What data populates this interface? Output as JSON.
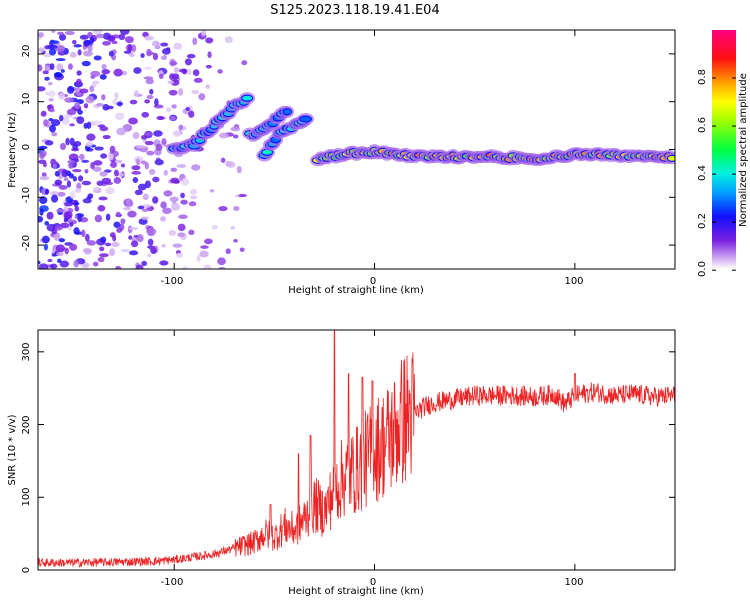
{
  "title": "S125.2023.118.19.41.E04",
  "chart_data": [
    {
      "type": "heatmap",
      "xlabel": "Height of straight line (km)",
      "ylabel": "Frequency (Hz)",
      "xlim": [
        -168,
        150
      ],
      "ylim": [
        -25,
        25
      ],
      "x_ticks": [
        "-100",
        "0",
        "100"
      ],
      "y_ticks": [
        "-20",
        "-10",
        "0",
        "10",
        "20"
      ],
      "x_tick_values": [
        -100,
        0,
        100
      ],
      "y_tick_values": [
        -20,
        -10,
        0,
        10,
        20
      ],
      "colorbar": {
        "label": "Normalized spectral amplitude",
        "range": [
          0,
          1
        ],
        "tick_labels": [
          "0.0",
          "0.2",
          "0.4",
          "0.6",
          "0.8"
        ],
        "tick_values": [
          0.0,
          0.2,
          0.4,
          0.6,
          0.8
        ],
        "colormap": "rainbow (white-violet-blue-cyan-green-yellow-red-magenta)"
      },
      "features": [
        {
          "description": "scattered low-amplitude noise",
          "x_range": [
            -168,
            -65
          ],
          "freq_range": [
            -25,
            25
          ],
          "amplitude": 0.15
        },
        {
          "description": "rising tone",
          "points": [
            [
              -100,
              0
            ],
            [
              -90,
              1
            ],
            [
              -80,
              5
            ],
            [
              -70,
              9
            ],
            [
              -62,
              11
            ]
          ]
        },
        {
          "description": "tone segment",
          "points": [
            [
              -62,
              3
            ],
            [
              -55,
              4
            ],
            [
              -48,
              7
            ],
            [
              -42,
              8
            ]
          ]
        },
        {
          "description": "tone segment",
          "points": [
            [
              -55,
              -1
            ],
            [
              -48,
              3
            ],
            [
              -40,
              5
            ],
            [
              -33,
              7
            ]
          ]
        },
        {
          "description": "steady tone",
          "points": [
            [
              -28,
              -2
            ],
            [
              -15,
              -1
            ],
            [
              0,
              -0.5
            ],
            [
              20,
              -1.5
            ],
            [
              60,
              -1.5
            ],
            [
              80,
              -2
            ],
            [
              100,
              -1
            ],
            [
              150,
              -1.5
            ]
          ],
          "peak_amplitude": 0.85
        }
      ]
    },
    {
      "type": "line",
      "xlabel": "Height of straight line (km)",
      "ylabel": "SNR (10 * v/v)",
      "xlim": [
        -168,
        150
      ],
      "ylim": [
        0,
        330
      ],
      "x_ticks": [
        "-100",
        "0",
        "100"
      ],
      "y_ticks": [
        "0",
        "100",
        "200",
        "300"
      ],
      "x_tick_values": [
        -100,
        0,
        100
      ],
      "y_tick_values": [
        0,
        100,
        200,
        300
      ],
      "color": "#ee2222",
      "x": [
        -168,
        -150,
        -130,
        -110,
        -100,
        -90,
        -80,
        -70,
        -60,
        -55,
        -50,
        -45,
        -40,
        -35,
        -30,
        -25,
        -20,
        -15,
        -10,
        -5,
        0,
        5,
        10,
        15,
        20,
        25,
        30,
        40,
        50,
        60,
        70,
        80,
        90,
        95,
        100,
        110,
        120,
        130,
        140,
        150
      ],
      "y": [
        10,
        10,
        11,
        12,
        14,
        18,
        22,
        30,
        38,
        50,
        45,
        60,
        55,
        70,
        90,
        80,
        110,
        130,
        135,
        150,
        165,
        175,
        190,
        210,
        215,
        225,
        230,
        235,
        240,
        240,
        240,
        238,
        242,
        228,
        240,
        245,
        240,
        242,
        238,
        240
      ],
      "spikes": [
        [
          -52,
          90
        ],
        [
          -38,
          160
        ],
        [
          -32,
          185
        ],
        [
          -20,
          330
        ],
        [
          -13,
          270
        ],
        [
          -6,
          265
        ],
        [
          -1,
          260
        ],
        [
          100,
          270
        ]
      ]
    }
  ]
}
